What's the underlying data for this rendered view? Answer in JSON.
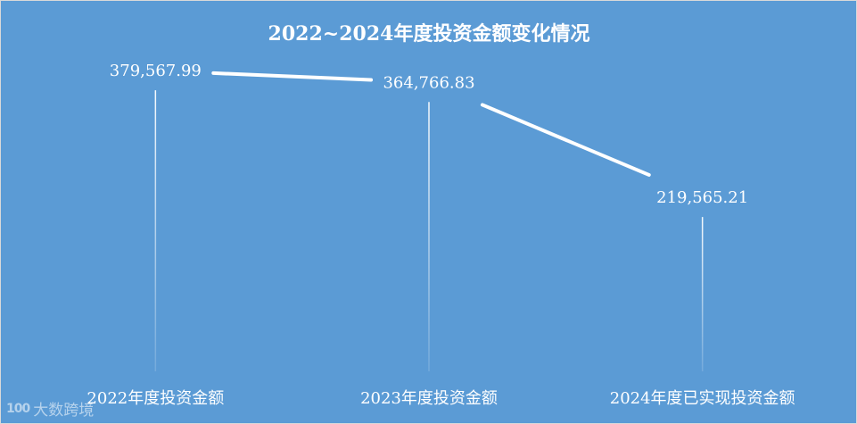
{
  "chart_data": {
    "type": "line",
    "title": "2022~2024年度投资金额变化情况",
    "categories": [
      "2022年度投资金额",
      "2023年度投资金额",
      "2024年度已实现投资金额"
    ],
    "series": [
      {
        "values": [
          379567.99,
          364766.83,
          219565.21
        ],
        "labels": [
          "379,567.99",
          "364,766.83",
          "219,565.21"
        ]
      }
    ],
    "ylim": [
      0,
      400000
    ],
    "grid": false,
    "drop_lines": true,
    "colors": {
      "background": "#5b9bd5",
      "line": "#ffffff",
      "text": "#ffffff"
    }
  },
  "watermark": {
    "logo_text": "100",
    "text": "大数跨境"
  }
}
